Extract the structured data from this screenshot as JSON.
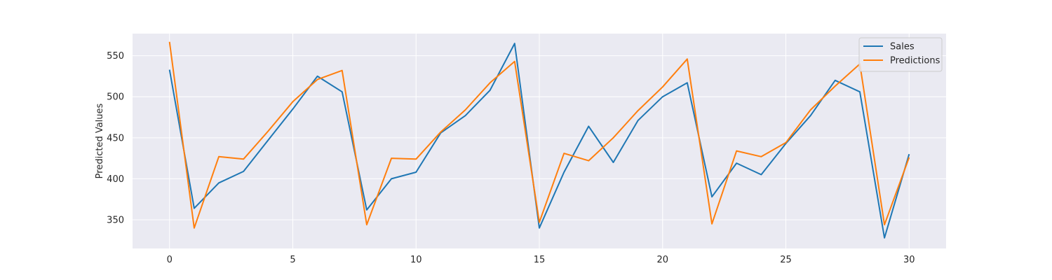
{
  "chart_data": {
    "type": "line",
    "ylabel": "Predicted Values",
    "xlim": [
      -1.5,
      31.5
    ],
    "ylim": [
      315,
      577
    ],
    "xticks": [
      0,
      5,
      10,
      15,
      20,
      25,
      30
    ],
    "yticks": [
      350,
      400,
      450,
      500,
      550
    ],
    "grid": true,
    "legend_position": "top-right",
    "x": [
      0,
      1,
      2,
      3,
      4,
      5,
      6,
      7,
      8,
      9,
      10,
      11,
      12,
      13,
      14,
      15,
      16,
      17,
      18,
      19,
      20,
      21,
      22,
      23,
      24,
      25,
      26,
      27,
      28,
      29,
      30
    ],
    "series": [
      {
        "name": "Sales",
        "color": "#1f77b4",
        "values": [
          533,
          364,
          395,
          409,
          447,
          485,
          525,
          506,
          362,
          400,
          408,
          456,
          477,
          508,
          565,
          340,
          408,
          464,
          420,
          471,
          500,
          517,
          378,
          419,
          405,
          443,
          477,
          520,
          506,
          328,
          430
        ]
      },
      {
        "name": "Predictions",
        "color": "#ff7f0e",
        "values": [
          567,
          340,
          427,
          424,
          458,
          494,
          521,
          532,
          344,
          425,
          424,
          457,
          484,
          517,
          543,
          347,
          431,
          422,
          450,
          483,
          512,
          546,
          345,
          434,
          427,
          444,
          484,
          513,
          540,
          344,
          426
        ]
      }
    ]
  }
}
